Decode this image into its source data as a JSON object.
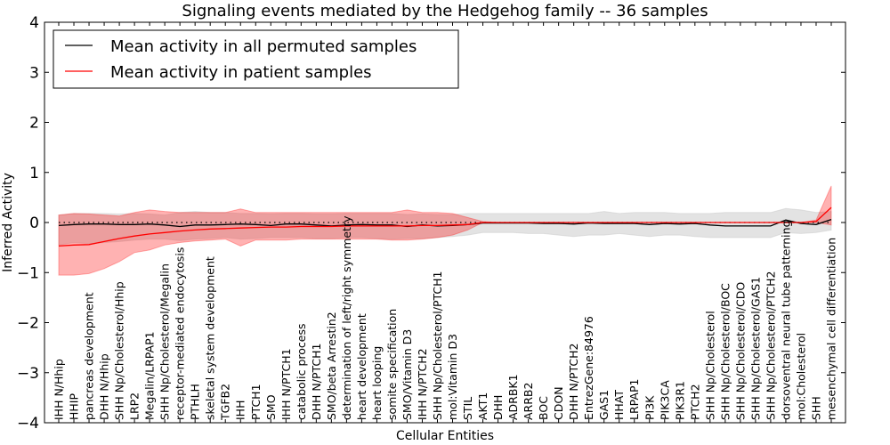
{
  "chart_data": {
    "type": "line",
    "title": "Signaling events mediated by the Hedgehog family -- 36 samples",
    "xlabel": "Cellular Entities",
    "ylabel": "Inferred Activity",
    "ylim": [
      -4,
      4
    ],
    "yticks": [
      -4,
      -3,
      -2,
      -1,
      0,
      1,
      2,
      3,
      4
    ],
    "ytick_labels": [
      "−4",
      "−3",
      "−2",
      "−1",
      "0",
      "1",
      "2",
      "3",
      "4"
    ],
    "grid": false,
    "reference_line": {
      "y": 0,
      "style": "dotted"
    },
    "legend": {
      "position": "top-left",
      "entries": [
        {
          "label": "Mean activity in all permuted samples",
          "color": "#000000"
        },
        {
          "label": "Mean activity in patient samples",
          "color": "#ff0000"
        }
      ]
    },
    "categories": [
      "IHH N/Hhip",
      "HHIP",
      "pancreas development",
      "DHH N/Hhip",
      "SHH Np/Cholesterol/Hhip",
      "LRP2",
      "Megalin/LRPAP1",
      "SHH Np/Cholesterol/Megalin",
      "receptor-mediated endocytosis",
      "PTHLH",
      "skeletal system development",
      "TGFB2",
      "IHH",
      "PTCH1",
      "SMO",
      "IHH N/PTCH1",
      "catabolic process",
      "DHH N/PTCH1",
      "SMO/beta Arrestin2",
      "determination of left/right symmetry",
      "heart development",
      "heart looping",
      "somite specification",
      "SMO/Vitamin D3",
      "IHH N/PTCH2",
      "SHH Np/Cholesterol/PTCH1",
      "mol:Vitamin D3",
      "STIL",
      "AKT1",
      "DHH",
      "ADRBK1",
      "ARRB2",
      "BOC",
      "CDON",
      "DHH N/PTCH2",
      "EntrezGene:84976",
      "GAS1",
      "HHAT",
      "LRPAP1",
      "PI3K",
      "PIK3CA",
      "PIK3R1",
      "PTCH2",
      "SHH Np/Cholesterol",
      "SHH Np/Cholesterol/BOC",
      "SHH Np/Cholesterol/CDO",
      "SHH Np/Cholesterol/GAS1",
      "SHH Np/Cholesterol/PTCH2",
      "dorsoventral neural tube patterning",
      "mol:Cholesterol",
      "SHH",
      "mesenchymal cell differentiation"
    ],
    "series": [
      {
        "name": "Mean activity in all permuted samples",
        "color": "#000000",
        "values": [
          -0.06,
          -0.04,
          -0.03,
          -0.03,
          -0.04,
          -0.04,
          -0.03,
          -0.05,
          -0.08,
          -0.05,
          -0.05,
          -0.04,
          -0.03,
          -0.04,
          -0.06,
          -0.03,
          -0.03,
          -0.05,
          -0.07,
          -0.05,
          -0.04,
          -0.05,
          -0.05,
          -0.08,
          -0.05,
          -0.07,
          -0.06,
          -0.04,
          -0.01,
          -0.01,
          -0.01,
          -0.01,
          -0.02,
          -0.02,
          -0.03,
          -0.01,
          -0.02,
          -0.02,
          -0.02,
          -0.04,
          -0.02,
          -0.03,
          -0.02,
          -0.05,
          -0.07,
          -0.07,
          -0.07,
          -0.07,
          0.05,
          -0.02,
          -0.04,
          0.06
        ],
        "band_lower": [
          -0.45,
          -0.4,
          -0.42,
          -0.4,
          -0.38,
          -0.35,
          -0.33,
          -0.33,
          -0.36,
          -0.33,
          -0.32,
          -0.3,
          -0.33,
          -0.32,
          -0.3,
          -0.3,
          -0.3,
          -0.32,
          -0.32,
          -0.3,
          -0.3,
          -0.32,
          -0.33,
          -0.32,
          -0.32,
          -0.3,
          -0.28,
          -0.25,
          -0.2,
          -0.2,
          -0.2,
          -0.22,
          -0.22,
          -0.25,
          -0.28,
          -0.25,
          -0.25,
          -0.22,
          -0.25,
          -0.28,
          -0.25,
          -0.25,
          -0.28,
          -0.3,
          -0.3,
          -0.3,
          -0.3,
          -0.3,
          -0.2,
          -0.22,
          -0.2,
          -0.15
        ],
        "band_upper": [
          0.15,
          0.18,
          0.18,
          0.18,
          0.17,
          0.18,
          0.17,
          0.15,
          0.2,
          0.22,
          0.2,
          0.2,
          0.18,
          0.18,
          0.17,
          0.18,
          0.18,
          0.17,
          0.17,
          0.18,
          0.18,
          0.18,
          0.18,
          0.16,
          0.17,
          0.16,
          0.16,
          0.18,
          0.18,
          0.18,
          0.18,
          0.18,
          0.18,
          0.18,
          0.18,
          0.18,
          0.22,
          0.18,
          0.2,
          0.2,
          0.2,
          0.18,
          0.18,
          0.18,
          0.2,
          0.2,
          0.2,
          0.2,
          0.28,
          0.25,
          0.2,
          0.22
        ]
      },
      {
        "name": "Mean activity in patient samples",
        "color": "#ff0000",
        "values": [
          -0.47,
          -0.45,
          -0.44,
          -0.38,
          -0.32,
          -0.27,
          -0.23,
          -0.2,
          -0.17,
          -0.15,
          -0.13,
          -0.12,
          -0.11,
          -0.1,
          -0.09,
          -0.09,
          -0.08,
          -0.08,
          -0.08,
          -0.07,
          -0.07,
          -0.07,
          -0.07,
          -0.07,
          -0.06,
          -0.06,
          -0.05,
          -0.04,
          0.0,
          0.0,
          0.0,
          0.0,
          0.0,
          0.0,
          0.0,
          0.0,
          0.0,
          0.0,
          0.0,
          0.0,
          0.0,
          0.0,
          0.0,
          0.0,
          0.0,
          0.0,
          0.0,
          0.0,
          0.0,
          0.0,
          0.02,
          0.3
        ],
        "band_lower": [
          -1.05,
          -1.05,
          -1.02,
          -0.92,
          -0.78,
          -0.6,
          -0.55,
          -0.45,
          -0.4,
          -0.37,
          -0.35,
          -0.33,
          -0.47,
          -0.35,
          -0.35,
          -0.35,
          -0.33,
          -0.33,
          -0.33,
          -0.33,
          -0.33,
          -0.33,
          -0.35,
          -0.35,
          -0.33,
          -0.3,
          -0.25,
          -0.15,
          0.0,
          0.0,
          0.0,
          0.0,
          0.0,
          0.0,
          0.0,
          0.0,
          0.0,
          0.0,
          0.0,
          0.0,
          0.0,
          0.0,
          0.0,
          0.0,
          0.0,
          0.0,
          0.0,
          0.0,
          0.0,
          0.0,
          0.0,
          -0.05
        ],
        "band_upper": [
          0.15,
          0.18,
          0.17,
          0.15,
          0.13,
          0.2,
          0.25,
          0.22,
          0.2,
          0.2,
          0.2,
          0.2,
          0.27,
          0.2,
          0.2,
          0.2,
          0.2,
          0.2,
          0.2,
          0.2,
          0.2,
          0.2,
          0.2,
          0.25,
          0.2,
          0.2,
          0.18,
          0.1,
          0.02,
          0.0,
          0.0,
          0.0,
          0.0,
          0.0,
          0.0,
          0.0,
          0.0,
          0.0,
          0.0,
          0.0,
          0.0,
          0.0,
          0.0,
          0.0,
          0.0,
          0.0,
          0.0,
          0.0,
          0.0,
          0.0,
          0.05,
          0.73
        ]
      }
    ]
  }
}
